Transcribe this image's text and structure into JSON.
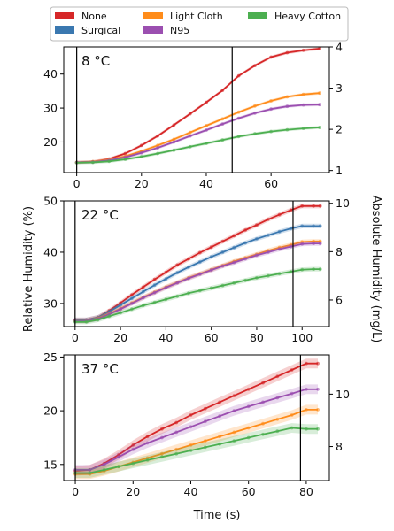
{
  "figure": {
    "xlabel": "Time (s)",
    "ylabel_left": "Relative Humidity (%)",
    "ylabel_right": "Absolute Humidity (mg/L)"
  },
  "legend": [
    {
      "name": "None",
      "color": "#d62728"
    },
    {
      "name": "Surgical",
      "color": "#3a78b0"
    },
    {
      "name": "Light Cloth",
      "color": "#ff8c1a"
    },
    {
      "name": "N95",
      "color": "#9b4fb0"
    },
    {
      "name": "Heavy Cotton",
      "color": "#4caf50"
    }
  ],
  "chart_data": [
    {
      "type": "line",
      "title": "8 °C",
      "xlim": [
        -4,
        78
      ],
      "ylim": [
        11,
        48
      ],
      "y2lim": [
        0.95,
        4.0
      ],
      "xticks": [
        0,
        20,
        40,
        60
      ],
      "yticks": [
        20,
        30,
        40
      ],
      "y2ticks": [
        1,
        2,
        3,
        4
      ],
      "vlines": [
        0,
        48
      ],
      "series": [
        {
          "name": "None",
          "color": "#d62728",
          "x": [
            0,
            5,
            10,
            15,
            20,
            25,
            30,
            35,
            40,
            45,
            50,
            55,
            60,
            65,
            70,
            75
          ],
          "y": [
            14,
            14.2,
            15,
            16.6,
            19,
            21.8,
            25,
            28.3,
            31.7,
            35.2,
            39.5,
            42.5,
            45,
            46.3,
            47,
            47.5
          ]
        },
        {
          "name": "Light Cloth",
          "color": "#ff8c1a",
          "x": [
            0,
            5,
            10,
            15,
            20,
            25,
            30,
            35,
            40,
            45,
            50,
            55,
            60,
            65,
            70,
            75
          ],
          "y": [
            14,
            14.2,
            14.8,
            15.8,
            17.3,
            19,
            20.8,
            22.8,
            24.8,
            26.8,
            28.8,
            30.6,
            32.1,
            33.3,
            34,
            34.4
          ]
        },
        {
          "name": "N95",
          "color": "#9b4fb0",
          "x": [
            0,
            5,
            10,
            15,
            20,
            25,
            30,
            35,
            40,
            45,
            50,
            55,
            60,
            65,
            70,
            75
          ],
          "y": [
            14,
            14.1,
            14.6,
            15.5,
            16.8,
            18.3,
            20,
            21.8,
            23.5,
            25.3,
            27,
            28.5,
            29.7,
            30.5,
            30.9,
            31
          ]
        },
        {
          "name": "Heavy Cotton",
          "color": "#4caf50",
          "x": [
            0,
            5,
            10,
            15,
            20,
            25,
            30,
            35,
            40,
            45,
            50,
            55,
            60,
            65,
            70,
            75
          ],
          "y": [
            13.9,
            14,
            14.3,
            14.9,
            15.7,
            16.6,
            17.6,
            18.6,
            19.6,
            20.6,
            21.6,
            22.4,
            23.1,
            23.6,
            24,
            24.3
          ]
        }
      ]
    },
    {
      "type": "line",
      "title": "22 °C",
      "xlim": [
        -5,
        112
      ],
      "ylim": [
        25.5,
        50
      ],
      "y2lim": [
        4.9,
        10.1
      ],
      "xticks": [
        0,
        20,
        40,
        60,
        80,
        100
      ],
      "yticks": [
        30,
        40,
        50
      ],
      "y2ticks": [
        6,
        8,
        10
      ],
      "vlines": [
        0,
        96
      ],
      "series": [
        {
          "name": "None",
          "color": "#d62728",
          "x": [
            0,
            5,
            10,
            15,
            20,
            25,
            30,
            35,
            40,
            45,
            50,
            55,
            60,
            65,
            70,
            75,
            80,
            85,
            90,
            95,
            100,
            105,
            108
          ],
          "y": [
            26.8,
            26.8,
            27.3,
            28.6,
            30.1,
            31.7,
            33.2,
            34.7,
            36.1,
            37.5,
            38.7,
            39.9,
            41,
            42.1,
            43.2,
            44.3,
            45.3,
            46.4,
            47.3,
            48.2,
            49,
            49,
            49
          ]
        },
        {
          "name": "Surgical",
          "color": "#3a78b0",
          "x": [
            0,
            5,
            10,
            15,
            20,
            25,
            30,
            35,
            40,
            45,
            50,
            55,
            60,
            65,
            70,
            75,
            80,
            85,
            90,
            95,
            100,
            105,
            108
          ],
          "y": [
            26.8,
            26.8,
            27.3,
            28.4,
            29.7,
            31,
            32.3,
            33.6,
            34.8,
            36,
            37.1,
            38.1,
            39.1,
            40,
            40.9,
            41.8,
            42.6,
            43.3,
            44,
            44.6,
            45.1,
            45.1,
            45.1
          ]
        },
        {
          "name": "Light Cloth",
          "color": "#ff8c1a",
          "x": [
            0,
            5,
            10,
            15,
            20,
            25,
            30,
            35,
            40,
            45,
            50,
            55,
            60,
            65,
            70,
            75,
            80,
            85,
            90,
            95,
            100,
            105,
            108
          ],
          "y": [
            26.6,
            26.6,
            27.1,
            28,
            29,
            30.1,
            31.2,
            32.2,
            33.2,
            34.1,
            35,
            35.8,
            36.6,
            37.4,
            38.2,
            38.9,
            39.6,
            40.3,
            40.9,
            41.4,
            42,
            42.1,
            42.1
          ]
        },
        {
          "name": "N95",
          "color": "#9b4fb0",
          "x": [
            0,
            5,
            10,
            15,
            20,
            25,
            30,
            35,
            40,
            45,
            50,
            55,
            60,
            65,
            70,
            75,
            80,
            85,
            90,
            95,
            100,
            105,
            108
          ],
          "y": [
            26.6,
            26.6,
            27,
            27.9,
            28.9,
            30,
            31.1,
            32.1,
            33.1,
            34,
            34.9,
            35.7,
            36.5,
            37.3,
            38,
            38.7,
            39.4,
            40,
            40.6,
            41.1,
            41.6,
            41.7,
            41.7
          ]
        },
        {
          "name": "Heavy Cotton",
          "color": "#4caf50",
          "x": [
            0,
            5,
            10,
            15,
            20,
            25,
            30,
            35,
            40,
            45,
            50,
            55,
            60,
            65,
            70,
            75,
            80,
            85,
            90,
            95,
            100,
            105,
            108
          ],
          "y": [
            26.4,
            26.4,
            26.8,
            27.5,
            28.2,
            28.9,
            29.6,
            30.2,
            30.8,
            31.4,
            32,
            32.5,
            33,
            33.5,
            34,
            34.5,
            35,
            35.4,
            35.8,
            36.2,
            36.6,
            36.7,
            36.7
          ]
        }
      ]
    },
    {
      "type": "line",
      "title": "37 °C",
      "xlim": [
        -4,
        88
      ],
      "ylim": [
        13.5,
        25.2
      ],
      "y2lim": [
        6.7,
        11.5
      ],
      "xticks": [
        0,
        20,
        40,
        60,
        80
      ],
      "yticks": [
        15,
        20,
        25
      ],
      "y2ticks": [
        8,
        10
      ],
      "vlines": [
        0,
        78
      ],
      "series": [
        {
          "name": "None",
          "color": "#d62728",
          "x": [
            0,
            5,
            10,
            15,
            20,
            25,
            30,
            35,
            40,
            45,
            50,
            55,
            60,
            65,
            70,
            75,
            80,
            84
          ],
          "y": [
            14.4,
            14.5,
            15.1,
            15.9,
            16.8,
            17.6,
            18.3,
            18.9,
            19.6,
            20.2,
            20.8,
            21.4,
            22,
            22.6,
            23.2,
            23.8,
            24.4,
            24.4
          ]
        },
        {
          "name": "Light Cloth",
          "color": "#ff8c1a",
          "x": [
            0,
            5,
            10,
            15,
            20,
            25,
            30,
            35,
            40,
            45,
            50,
            55,
            60,
            65,
            70,
            75,
            80,
            84
          ],
          "y": [
            14.1,
            14.1,
            14.4,
            14.8,
            15.2,
            15.6,
            16,
            16.4,
            16.8,
            17.2,
            17.6,
            18,
            18.4,
            18.8,
            19.2,
            19.6,
            20.1,
            20.1
          ]
        },
        {
          "name": "N95",
          "color": "#9b4fb0",
          "x": [
            0,
            5,
            10,
            15,
            20,
            25,
            30,
            35,
            40,
            45,
            50,
            55,
            60,
            65,
            70,
            75,
            80,
            84
          ],
          "y": [
            14.5,
            14.5,
            15,
            15.7,
            16.4,
            17,
            17.5,
            18,
            18.5,
            19,
            19.5,
            20,
            20.4,
            20.8,
            21.2,
            21.6,
            22,
            22
          ]
        },
        {
          "name": "Heavy Cotton",
          "color": "#4caf50",
          "x": [
            0,
            5,
            10,
            15,
            20,
            25,
            30,
            35,
            40,
            45,
            50,
            55,
            60,
            65,
            70,
            75,
            80,
            84
          ],
          "y": [
            14.2,
            14.2,
            14.5,
            14.8,
            15.1,
            15.4,
            15.7,
            16,
            16.3,
            16.6,
            16.9,
            17.2,
            17.5,
            17.8,
            18.1,
            18.4,
            18.3,
            18.3
          ]
        }
      ]
    }
  ]
}
